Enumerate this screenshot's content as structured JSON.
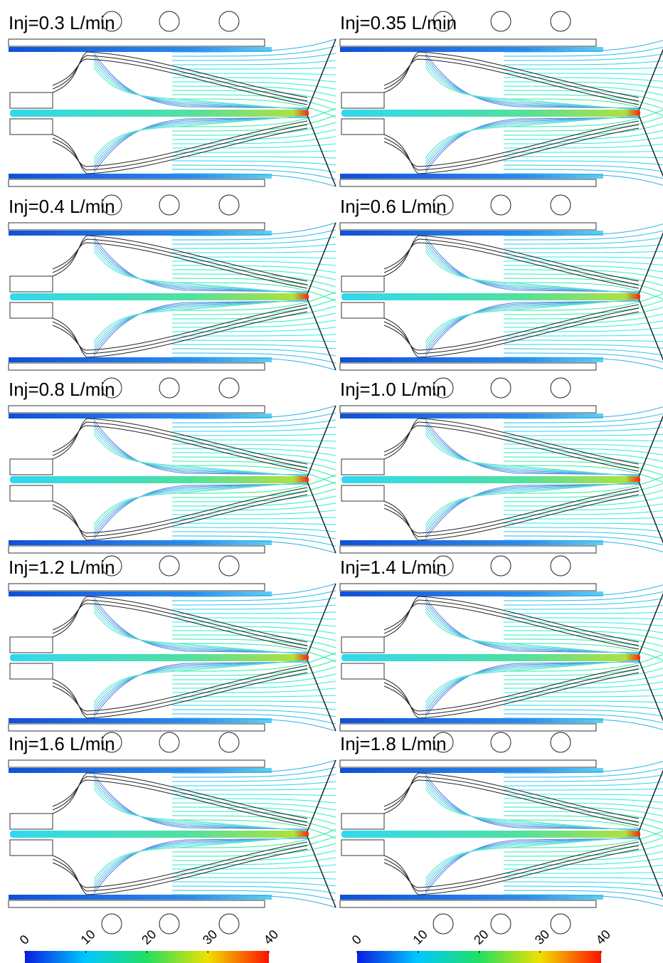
{
  "panels": [
    {
      "label": "Inj=0.3 L/min"
    },
    {
      "label": "Inj=0.35 L/min"
    },
    {
      "label": "Inj=0.4 L/min"
    },
    {
      "label": "Inj=0.6 L/min"
    },
    {
      "label": "Inj=0.8 L/min"
    },
    {
      "label": "Inj=1.0 L/min"
    },
    {
      "label": "Inj=1.2 L/min"
    },
    {
      "label": "Inj=1.4 L/min"
    },
    {
      "label": "Inj=1.6 L/min"
    },
    {
      "label": "Inj=1.8 L/min"
    }
  ],
  "colorbars": [
    {
      "ticks": [
        0,
        10,
        20,
        30,
        40
      ]
    },
    {
      "ticks": [
        0,
        10,
        20,
        30,
        40
      ]
    }
  ]
}
